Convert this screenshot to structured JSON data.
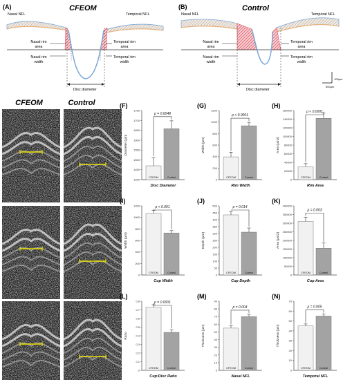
{
  "diagrams": [
    {
      "id": "A",
      "label": "(A)",
      "title": "CFEOM",
      "nasal_nfl": "Nasal NFL",
      "temporal_nfl": "Temporal NFL",
      "nasal_rim_area": [
        "Nasal rim",
        "area"
      ],
      "temporal_rim_area": [
        "Temporal rim",
        "area"
      ],
      "nasal_rim_width": [
        "Nasal rim",
        "width"
      ],
      "temporal_rim_width": [
        "Temporal rim",
        "width"
      ],
      "disc_diameter": "Disc diameter"
    },
    {
      "id": "B",
      "label": "(B)",
      "title": "Control",
      "nasal_nfl": "Nasal NFL",
      "temporal_nfl": "Temporal NFL",
      "nasal_rim_area": [
        "Nasal rim",
        "area"
      ],
      "temporal_rim_area": [
        "Temporal rim",
        "area"
      ],
      "nasal_rim_width": [
        "Nasal rim",
        "width"
      ],
      "temporal_rim_width": [
        "Temporal rim",
        "width"
      ],
      "disc_diameter": "Disc diameter"
    }
  ],
  "scale_bar": {
    "vertical": "100µm",
    "horizontal": "500µm"
  },
  "oct": {
    "col_titles": [
      "CFEOM",
      "Control"
    ],
    "rows": [
      {
        "label": "(C)"
      },
      {
        "label": "(D)"
      },
      {
        "label": "(E)"
      }
    ]
  },
  "colors": {
    "bar_cfeom": "#f1f1f1",
    "bar_control": "#a3a3a3",
    "rim": "#e03a4b",
    "nfl_blue": "#7aa8d8",
    "nfl_orange": "#e8b27a",
    "marker": "#e8e000"
  },
  "chart_data": [
    {
      "id": "F",
      "label": "(F)",
      "type": "bar",
      "title": "Disc Diameter",
      "ylabel": "Diameter (µm)",
      "pvalue": "p = 0.0048",
      "categories": [
        "CFEOM",
        "Control"
      ],
      "values": [
        1470,
        1658
      ],
      "errors": [
        42,
        40
      ],
      "ylim": [
        1400,
        1750
      ],
      "ticks": [
        1400,
        1450,
        1500,
        1550,
        1600,
        1650,
        1700,
        1750
      ]
    },
    {
      "id": "G",
      "label": "(G)",
      "type": "bar",
      "title": "Rim Width",
      "ylabel": "Width (µm)",
      "pvalue": "p < 0.0001",
      "categories": [
        "CFEOM",
        "Control"
      ],
      "values": [
        395,
        935
      ],
      "errors": [
        80,
        60
      ],
      "ylim": [
        0,
        1200
      ],
      "ticks": [
        0,
        200,
        400,
        600,
        800,
        1000,
        1200
      ]
    },
    {
      "id": "H",
      "label": "(H)",
      "type": "bar",
      "title": "Rim Area",
      "ylabel": "Area (µm2)",
      "pvalue": "p < 0.0001",
      "categories": [
        "CFEOM",
        "Control"
      ],
      "values": [
        30000,
        142000
      ],
      "errors": [
        7000,
        12000
      ],
      "ylim": [
        0,
        160000
      ],
      "ticks": [
        0,
        20000,
        40000,
        60000,
        80000,
        100000,
        120000,
        140000,
        160000
      ]
    },
    {
      "id": "I",
      "label": "(I)",
      "type": "bar",
      "title": "Cup Width",
      "ylabel": "Width (µm)",
      "pvalue": "p < 0.001",
      "categories": [
        "CFEOM",
        "Control"
      ],
      "values": [
        1070,
        730
      ],
      "errors": [
        50,
        40
      ],
      "ylim": [
        0,
        1200
      ],
      "ticks": [
        0,
        200,
        400,
        600,
        800,
        1000,
        1200
      ]
    },
    {
      "id": "J",
      "label": "(J)",
      "type": "bar",
      "title": "Cup Depth",
      "ylabel": "Depth (µm)",
      "pvalue": "p = 0.014",
      "categories": [
        "CFEOM",
        "Control"
      ],
      "values": [
        435,
        310
      ],
      "errors": [
        25,
        30
      ],
      "ylim": [
        0,
        500
      ],
      "ticks": [
        0,
        50,
        100,
        150,
        200,
        250,
        300,
        350,
        400,
        450,
        500
      ]
    },
    {
      "id": "K",
      "label": "(K)",
      "type": "bar",
      "title": "Cup Area",
      "ylabel": "Area (µm2)",
      "pvalue": "p = 0.003",
      "categories": [
        "CFEOM",
        "Control"
      ],
      "values": [
        310000,
        155000
      ],
      "errors": [
        25000,
        30000
      ],
      "ylim": [
        0,
        400000
      ],
      "ticks": [
        0,
        50000,
        100000,
        150000,
        200000,
        250000,
        300000,
        350000,
        400000
      ]
    },
    {
      "id": "L",
      "label": "(L)",
      "type": "bar",
      "title": "Cup:Disc Ratio",
      "ylabel": "Ratio",
      "pvalue": "p = 0.0001",
      "categories": [
        "CFEOM",
        "Control"
      ],
      "values": [
        0.73,
        0.44
      ],
      "errors": [
        0.03,
        0.03
      ],
      "ylim": [
        0,
        0.8
      ],
      "ticks": [
        0,
        0.1,
        0.2,
        0.3,
        0.4,
        0.5,
        0.6,
        0.7,
        0.8
      ]
    },
    {
      "id": "M",
      "label": "(M)",
      "type": "bar",
      "title": "Nasal NFL",
      "ylabel": "Thickness (µm)",
      "pvalue": "p = 0.004",
      "categories": [
        "CFEOM",
        "Control"
      ],
      "values": [
        55,
        70
      ],
      "errors": [
        3,
        3
      ],
      "ylim": [
        0,
        90
      ],
      "ticks": [
        0,
        10,
        20,
        30,
        40,
        50,
        60,
        70,
        80,
        90
      ]
    },
    {
      "id": "N",
      "label": "(N)",
      "type": "bar",
      "title": "Temporal NFL",
      "ylabel": "Thickness (µm)",
      "pvalue": "p = 0.005",
      "categories": [
        "CFEOM",
        "Control"
      ],
      "values": [
        45,
        55
      ],
      "errors": [
        2,
        2
      ],
      "ylim": [
        0,
        70
      ],
      "ticks": [
        0,
        10,
        20,
        30,
        40,
        50,
        60,
        70
      ]
    }
  ]
}
